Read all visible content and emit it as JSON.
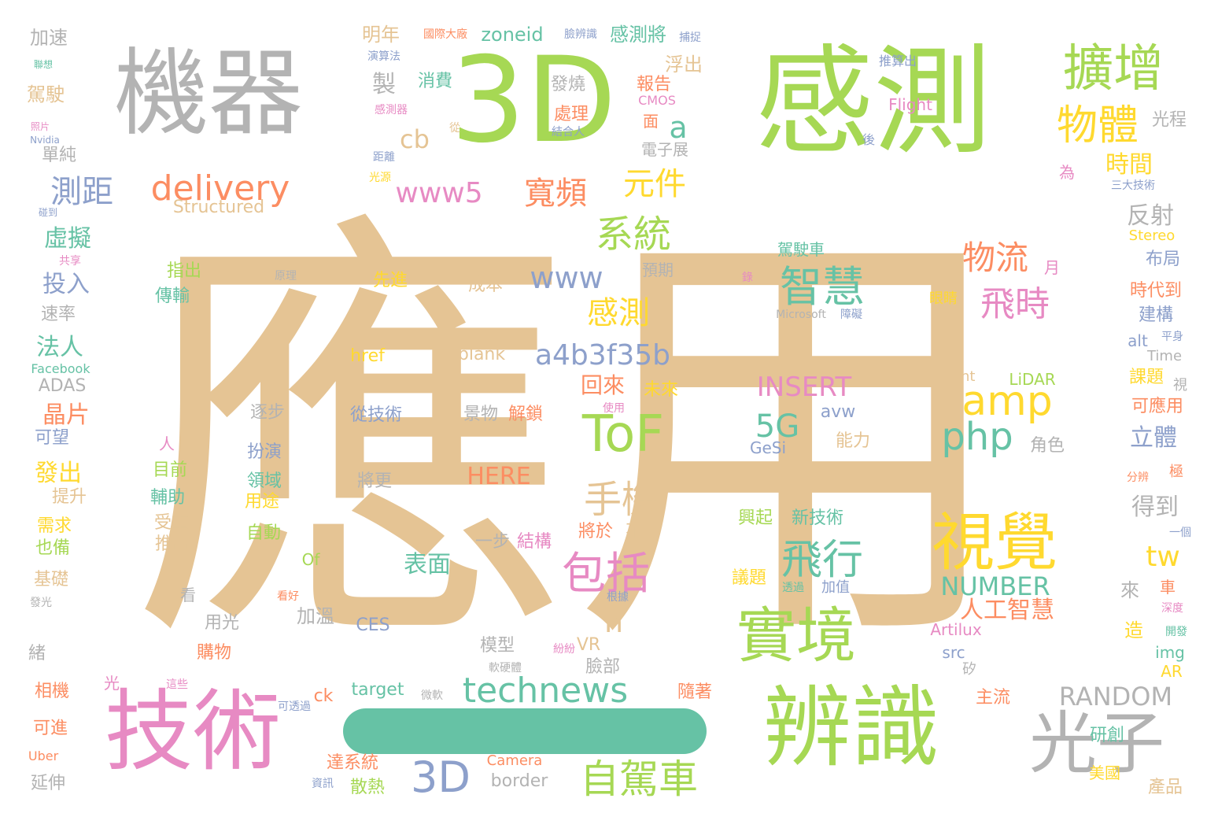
{
  "palette": {
    "tan": "#e5c494",
    "green": "#a6d854",
    "gray": "#b3b3b3",
    "pink": "#e78ac3",
    "teal": "#66c2a5",
    "blue": "#8da0cb",
    "orange": "#fc8d62",
    "yellow": "#ffd92f"
  },
  "decorations": {
    "bar_color": "#66c2a5"
  },
  "words": [
    {
      "text": "應用",
      "color": "#e5c494"
    },
    {
      "text": "3D",
      "color": "#a6d854"
    },
    {
      "text": "感測",
      "color": "#a6d854"
    },
    {
      "text": "機器",
      "color": "#b3b3b3"
    },
    {
      "text": "技術",
      "color": "#e78ac3"
    },
    {
      "text": "辨識",
      "color": "#a6d854"
    },
    {
      "text": "光子",
      "color": "#b3b3b3"
    },
    {
      "text": "視覺",
      "color": "#ffd92f"
    },
    {
      "text": "實境",
      "color": "#a6d854"
    },
    {
      "text": "擴增",
      "color": "#a6d854"
    },
    {
      "text": "物體",
      "color": "#ffd92f"
    },
    {
      "text": "ToF",
      "color": "#a6d854"
    },
    {
      "text": "delivery",
      "color": "#fc8d62"
    },
    {
      "text": "technews",
      "color": "#66c2a5"
    },
    {
      "text": "自駕車",
      "color": "#a6d854"
    },
    {
      "text": "3D",
      "color": "#8da0cb"
    },
    {
      "text": "包括",
      "color": "#e78ac3"
    },
    {
      "text": "飛行",
      "color": "#66c2a5"
    },
    {
      "text": "智慧",
      "color": "#66c2a5"
    },
    {
      "text": "amp",
      "color": "#ffd92f"
    },
    {
      "text": "php",
      "color": "#66c2a5"
    },
    {
      "text": "系統",
      "color": "#a6d854"
    },
    {
      "text": "手機",
      "color": "#e5c494"
    },
    {
      "text": "飛時",
      "color": "#e78ac3"
    },
    {
      "text": "物流",
      "color": "#fc8d62"
    },
    {
      "text": "測距",
      "color": "#8da0cb"
    },
    {
      "text": "www5",
      "color": "#e78ac3"
    },
    {
      "text": "www",
      "color": "#8da0cb"
    },
    {
      "text": "寬頻",
      "color": "#fc8d62"
    },
    {
      "text": "元件",
      "color": "#ffd92f"
    },
    {
      "text": "感測",
      "color": "#ffd92f"
    },
    {
      "text": "a4b3f35b",
      "color": "#8da0cb"
    },
    {
      "text": "5G",
      "color": "#66c2a5"
    },
    {
      "text": "INSERT",
      "color": "#e78ac3"
    },
    {
      "text": "NUMBER",
      "color": "#66c2a5"
    },
    {
      "text": "人工智慧",
      "color": "#fc8d62"
    },
    {
      "text": "RANDOM",
      "color": "#b3b3b3"
    },
    {
      "text": "tw",
      "color": "#ffd92f"
    },
    {
      "text": "cb",
      "color": "#e5c494"
    },
    {
      "text": "a",
      "color": "#66c2a5"
    },
    {
      "text": "n",
      "color": "#e5c494"
    },
    {
      "text": "HERE",
      "color": "#fc8d62"
    },
    {
      "text": "表面",
      "color": "#66c2a5"
    },
    {
      "text": "虛擬",
      "color": "#66c2a5"
    },
    {
      "text": "投入",
      "color": "#8da0cb"
    },
    {
      "text": "法人",
      "color": "#66c2a5"
    },
    {
      "text": "晶片",
      "color": "#fc8d62"
    },
    {
      "text": "發出",
      "color": "#ffd92f"
    },
    {
      "text": "時間",
      "color": "#ffd92f"
    },
    {
      "text": "反射",
      "color": "#b3b3b3"
    },
    {
      "text": "立體",
      "color": "#8da0cb"
    },
    {
      "text": "得到",
      "color": "#b3b3b3"
    },
    {
      "text": "回來",
      "color": "#fc8d62"
    },
    {
      "text": "製",
      "color": "#b3b3b3"
    },
    {
      "text": "加速",
      "color": "#b3b3b3"
    },
    {
      "text": "駕駛",
      "color": "#e5c494"
    },
    {
      "text": "單純",
      "color": "#b3b3b3"
    },
    {
      "text": "明年",
      "color": "#e5c494"
    },
    {
      "text": "zoneid",
      "color": "#66c2a5"
    },
    {
      "text": "感測將",
      "color": "#66c2a5"
    },
    {
      "text": "消費",
      "color": "#66c2a5"
    },
    {
      "text": "發燒",
      "color": "#b3b3b3"
    },
    {
      "text": "報告",
      "color": "#fc8d62"
    },
    {
      "text": "浮出",
      "color": "#e5c494"
    },
    {
      "text": "處理",
      "color": "#fc8d62"
    },
    {
      "text": "電子展",
      "color": "#b3b3b3"
    },
    {
      "text": "面",
      "color": "#fc8d62"
    },
    {
      "text": "Structured",
      "color": "#e5c494"
    },
    {
      "text": "駕駛車",
      "color": "#66c2a5"
    },
    {
      "text": "指出",
      "color": "#a6d854"
    },
    {
      "text": "傳輸",
      "color": "#66c2a5"
    },
    {
      "text": "先進",
      "color": "#ffd92f"
    },
    {
      "text": "成本",
      "color": "#e5c494"
    },
    {
      "text": "預期",
      "color": "#b3b3b3"
    },
    {
      "text": "href",
      "color": "#ffd92f"
    },
    {
      "text": "blank",
      "color": "#e5c494"
    },
    {
      "text": "從技術",
      "color": "#8da0cb"
    },
    {
      "text": "景物",
      "color": "#b3b3b3"
    },
    {
      "text": "解鎖",
      "color": "#fc8d62"
    },
    {
      "text": "未來",
      "color": "#ffd92f"
    },
    {
      "text": "將更",
      "color": "#b3b3b3"
    },
    {
      "text": "逐步",
      "color": "#b3b3b3"
    },
    {
      "text": "扮演",
      "color": "#8da0cb"
    },
    {
      "text": "領域",
      "color": "#66c2a5"
    },
    {
      "text": "用途",
      "color": "#ffd92f"
    },
    {
      "text": "自動",
      "color": "#a6d854"
    },
    {
      "text": "目前",
      "color": "#a6d854"
    },
    {
      "text": "輔助",
      "color": "#66c2a5"
    },
    {
      "text": "受重",
      "color": "#e5c494"
    },
    {
      "text": "推出",
      "color": "#e5c494"
    },
    {
      "text": "一步",
      "color": "#b3b3b3"
    },
    {
      "text": "結構",
      "color": "#e78ac3"
    },
    {
      "text": "將於",
      "color": "#fc8d62"
    },
    {
      "text": "不再",
      "color": "#e5c494"
    },
    {
      "text": "興起",
      "color": "#a6d854"
    },
    {
      "text": "新技術",
      "color": "#66c2a5"
    },
    {
      "text": "avw",
      "color": "#8da0cb"
    },
    {
      "text": "能力",
      "color": "#e5c494"
    },
    {
      "text": "GeSi",
      "color": "#8da0cb"
    },
    {
      "text": "Light",
      "color": "#e5c494"
    },
    {
      "text": "LiDAR",
      "color": "#a6d854"
    },
    {
      "text": "角色",
      "color": "#b3b3b3"
    },
    {
      "text": "議題",
      "color": "#ffd92f"
    },
    {
      "text": "加值",
      "color": "#8da0cb"
    },
    {
      "text": "Artilux",
      "color": "#e78ac3"
    },
    {
      "text": "src",
      "color": "#8da0cb"
    },
    {
      "text": "矽",
      "color": "#b3b3b3"
    },
    {
      "text": "加溫",
      "color": "#b3b3b3"
    },
    {
      "text": "CES",
      "color": "#8da0cb"
    },
    {
      "text": "模型",
      "color": "#b3b3b3"
    },
    {
      "text": "VR",
      "color": "#e5c494"
    },
    {
      "text": "臉部",
      "color": "#b3b3b3"
    },
    {
      "text": "購物",
      "color": "#fc8d62"
    },
    {
      "text": "用光",
      "color": "#b3b3b3"
    },
    {
      "text": "target",
      "color": "#66c2a5"
    },
    {
      "text": "ck",
      "color": "#fc8d62"
    },
    {
      "text": "隨著",
      "color": "#fc8d62"
    },
    {
      "text": "主流",
      "color": "#fc8d62"
    },
    {
      "text": "研創",
      "color": "#66c2a5"
    },
    {
      "text": "美國",
      "color": "#ffd92f"
    },
    {
      "text": "產品",
      "color": "#e5c494"
    },
    {
      "text": "border",
      "color": "#b3b3b3"
    },
    {
      "text": "Camera",
      "color": "#fc8d62"
    },
    {
      "text": "達系統",
      "color": "#fc8d62"
    },
    {
      "text": "散熱",
      "color": "#a6d854"
    },
    {
      "text": "延伸",
      "color": "#b3b3b3"
    },
    {
      "text": "可進",
      "color": "#fc8d62"
    },
    {
      "text": "Uber",
      "color": "#fc8d62"
    },
    {
      "text": "相機",
      "color": "#fc8d62"
    },
    {
      "text": "緒",
      "color": "#b3b3b3"
    },
    {
      "text": "光",
      "color": "#e78ac3"
    },
    {
      "text": "人",
      "color": "#e78ac3"
    },
    {
      "text": "提升",
      "color": "#e5c494"
    },
    {
      "text": "需求",
      "color": "#ffd92f"
    },
    {
      "text": "也備",
      "color": "#a6d854"
    },
    {
      "text": "基礎",
      "color": "#e5c494"
    },
    {
      "text": "速率",
      "color": "#b3b3b3"
    },
    {
      "text": "ADAS",
      "color": "#b3b3b3"
    },
    {
      "text": "可望",
      "color": "#8da0cb"
    },
    {
      "text": "Facebook",
      "color": "#66c2a5"
    },
    {
      "text": "光程",
      "color": "#b3b3b3"
    },
    {
      "text": "布局",
      "color": "#8da0cb"
    },
    {
      "text": "時代到",
      "color": "#fc8d62"
    },
    {
      "text": "建構",
      "color": "#8da0cb"
    },
    {
      "text": "Stereo",
      "color": "#ffd92f"
    },
    {
      "text": "alt",
      "color": "#8da0cb"
    },
    {
      "text": "Time",
      "color": "#b3b3b3"
    },
    {
      "text": "課題",
      "color": "#ffd92f"
    },
    {
      "text": "可應用",
      "color": "#fc8d62"
    },
    {
      "text": "來",
      "color": "#b3b3b3"
    },
    {
      "text": "造",
      "color": "#ffd92f"
    },
    {
      "text": "車",
      "color": "#fc8d62"
    },
    {
      "text": "img",
      "color": "#66c2a5"
    },
    {
      "text": "AR",
      "color": "#ffd92f"
    },
    {
      "text": "Flight",
      "color": "#e78ac3"
    },
    {
      "text": "CMOS",
      "color": "#e78ac3"
    },
    {
      "text": "眼睛",
      "color": "#ffd92f"
    },
    {
      "text": "月",
      "color": "#e78ac3"
    },
    {
      "text": "Microsoft",
      "color": "#b3b3b3"
    },
    {
      "text": "Of",
      "color": "#a6d854"
    },
    {
      "text": "看",
      "color": "#b3b3b3"
    },
    {
      "text": "為",
      "color": "#e78ac3"
    },
    {
      "text": "後",
      "color": "#8da0cb"
    },
    {
      "text": "推算出",
      "color": "#8da0cb"
    },
    {
      "text": "結合人",
      "color": "#8da0cb"
    },
    {
      "text": "從",
      "color": "#e5c494"
    },
    {
      "text": "距離",
      "color": "#8da0cb"
    },
    {
      "text": "光源",
      "color": "#ffd92f"
    },
    {
      "text": "國際大廠",
      "color": "#fc8d62"
    },
    {
      "text": "臉辨識",
      "color": "#8da0cb"
    },
    {
      "text": "捕捉",
      "color": "#8da0cb"
    },
    {
      "text": "演算法",
      "color": "#8da0cb"
    },
    {
      "text": "感測器",
      "color": "#e78ac3"
    },
    {
      "text": "聯想",
      "color": "#66c2a5"
    },
    {
      "text": "照片",
      "color": "#e78ac3"
    },
    {
      "text": "Nvidia",
      "color": "#8da0cb"
    },
    {
      "text": "碰到",
      "color": "#8da0cb"
    },
    {
      "text": "共享",
      "color": "#e78ac3"
    },
    {
      "text": "原理",
      "color": "#b3b3b3"
    },
    {
      "text": "三大技術",
      "color": "#8da0cb"
    },
    {
      "text": "平身",
      "color": "#8da0cb"
    },
    {
      "text": "視",
      "color": "#b3b3b3"
    },
    {
      "text": "分辨",
      "color": "#fc8d62"
    },
    {
      "text": "極",
      "color": "#fc8d62"
    },
    {
      "text": "一個",
      "color": "#8da0cb"
    },
    {
      "text": "深度",
      "color": "#e78ac3"
    },
    {
      "text": "開發",
      "color": "#66c2a5"
    },
    {
      "text": "使用",
      "color": "#e78ac3"
    },
    {
      "text": "看好",
      "color": "#fc8d62"
    },
    {
      "text": "根據",
      "color": "#8da0cb"
    },
    {
      "text": "紛紛",
      "color": "#e78ac3"
    },
    {
      "text": "軟硬體",
      "color": "#b3b3b3"
    },
    {
      "text": "微軟",
      "color": "#b3b3b3"
    },
    {
      "text": "透過",
      "color": "#66c2a5"
    },
    {
      "text": "資訊",
      "color": "#8da0cb"
    },
    {
      "text": "這些",
      "color": "#e78ac3"
    },
    {
      "text": "可透過",
      "color": "#8da0cb"
    },
    {
      "text": "發光",
      "color": "#b3b3b3"
    },
    {
      "text": "障礙",
      "color": "#8da0cb"
    },
    {
      "text": "錄",
      "color": "#e78ac3"
    }
  ]
}
